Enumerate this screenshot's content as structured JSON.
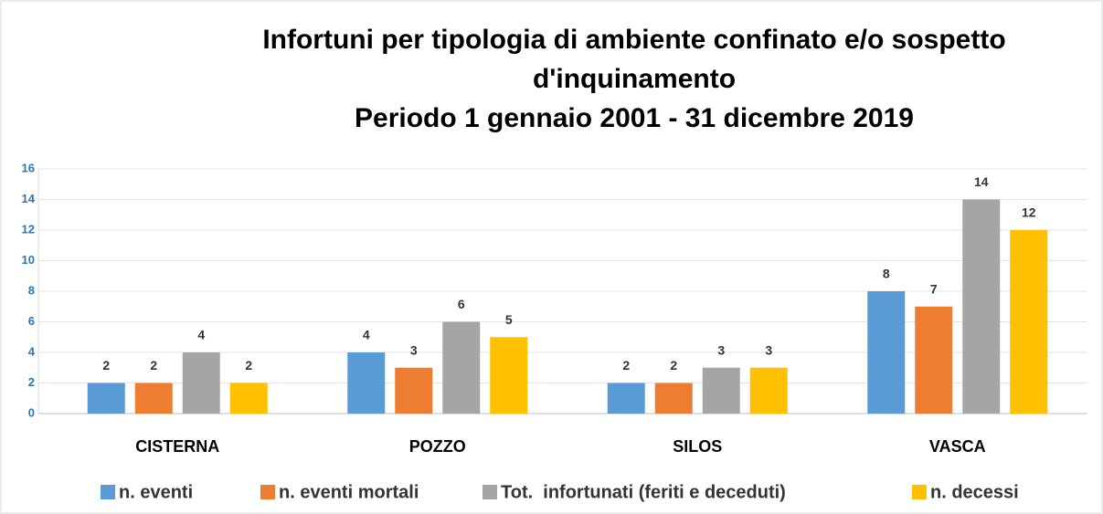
{
  "chart_data": {
    "type": "bar",
    "title": [
      "Infortuni per tipologia di ambiente confinato e/o sospetto",
      "d'inquinamento"
    ],
    "subtitle": "Periodo 1 gennaio 2001 - 31 dicembre 2019",
    "categories": [
      "CISTERNA",
      "POZZO",
      "SILOS",
      "VASCA"
    ],
    "series": [
      {
        "name": "n. eventi",
        "color": "#5b9bd5",
        "values": [
          2,
          4,
          2,
          8
        ]
      },
      {
        "name": "n. eventi mortali",
        "color": "#ed7d31",
        "values": [
          2,
          3,
          2,
          7
        ]
      },
      {
        "name": "Tot.  infortunati (feriti e deceduti)",
        "color": "#a5a5a5",
        "values": [
          4,
          6,
          3,
          14
        ]
      },
      {
        "name": "n. decessi",
        "color": "#ffc000",
        "values": [
          2,
          5,
          3,
          12
        ]
      }
    ],
    "ylim": [
      0,
      16
    ],
    "yticks": [
      0,
      2,
      4,
      6,
      8,
      10,
      12,
      14,
      16
    ],
    "grid": true,
    "legend": "bottom"
  }
}
